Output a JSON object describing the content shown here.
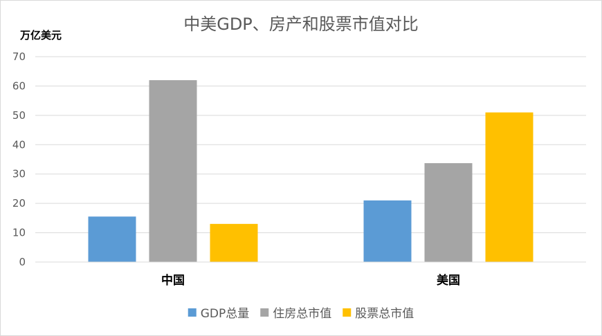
{
  "chart_data": {
    "type": "bar",
    "title": "中美GDP、房产和股票市值对比",
    "ylabel": "万亿美元",
    "xlabel": "",
    "categories": [
      "中国",
      "美国"
    ],
    "series": [
      {
        "name": "GDP总量",
        "values": [
          15.5,
          21
        ],
        "color": "#5b9bd5"
      },
      {
        "name": "住房总市值",
        "values": [
          62,
          33.7
        ],
        "color": "#a5a5a5"
      },
      {
        "name": "股票总市值",
        "values": [
          13,
          51
        ],
        "color": "#ffc000"
      }
    ],
    "ylim": [
      0,
      70
    ],
    "yticks": [
      0,
      10,
      20,
      30,
      40,
      50,
      60,
      70
    ],
    "grid": true,
    "legend_position": "bottom"
  }
}
